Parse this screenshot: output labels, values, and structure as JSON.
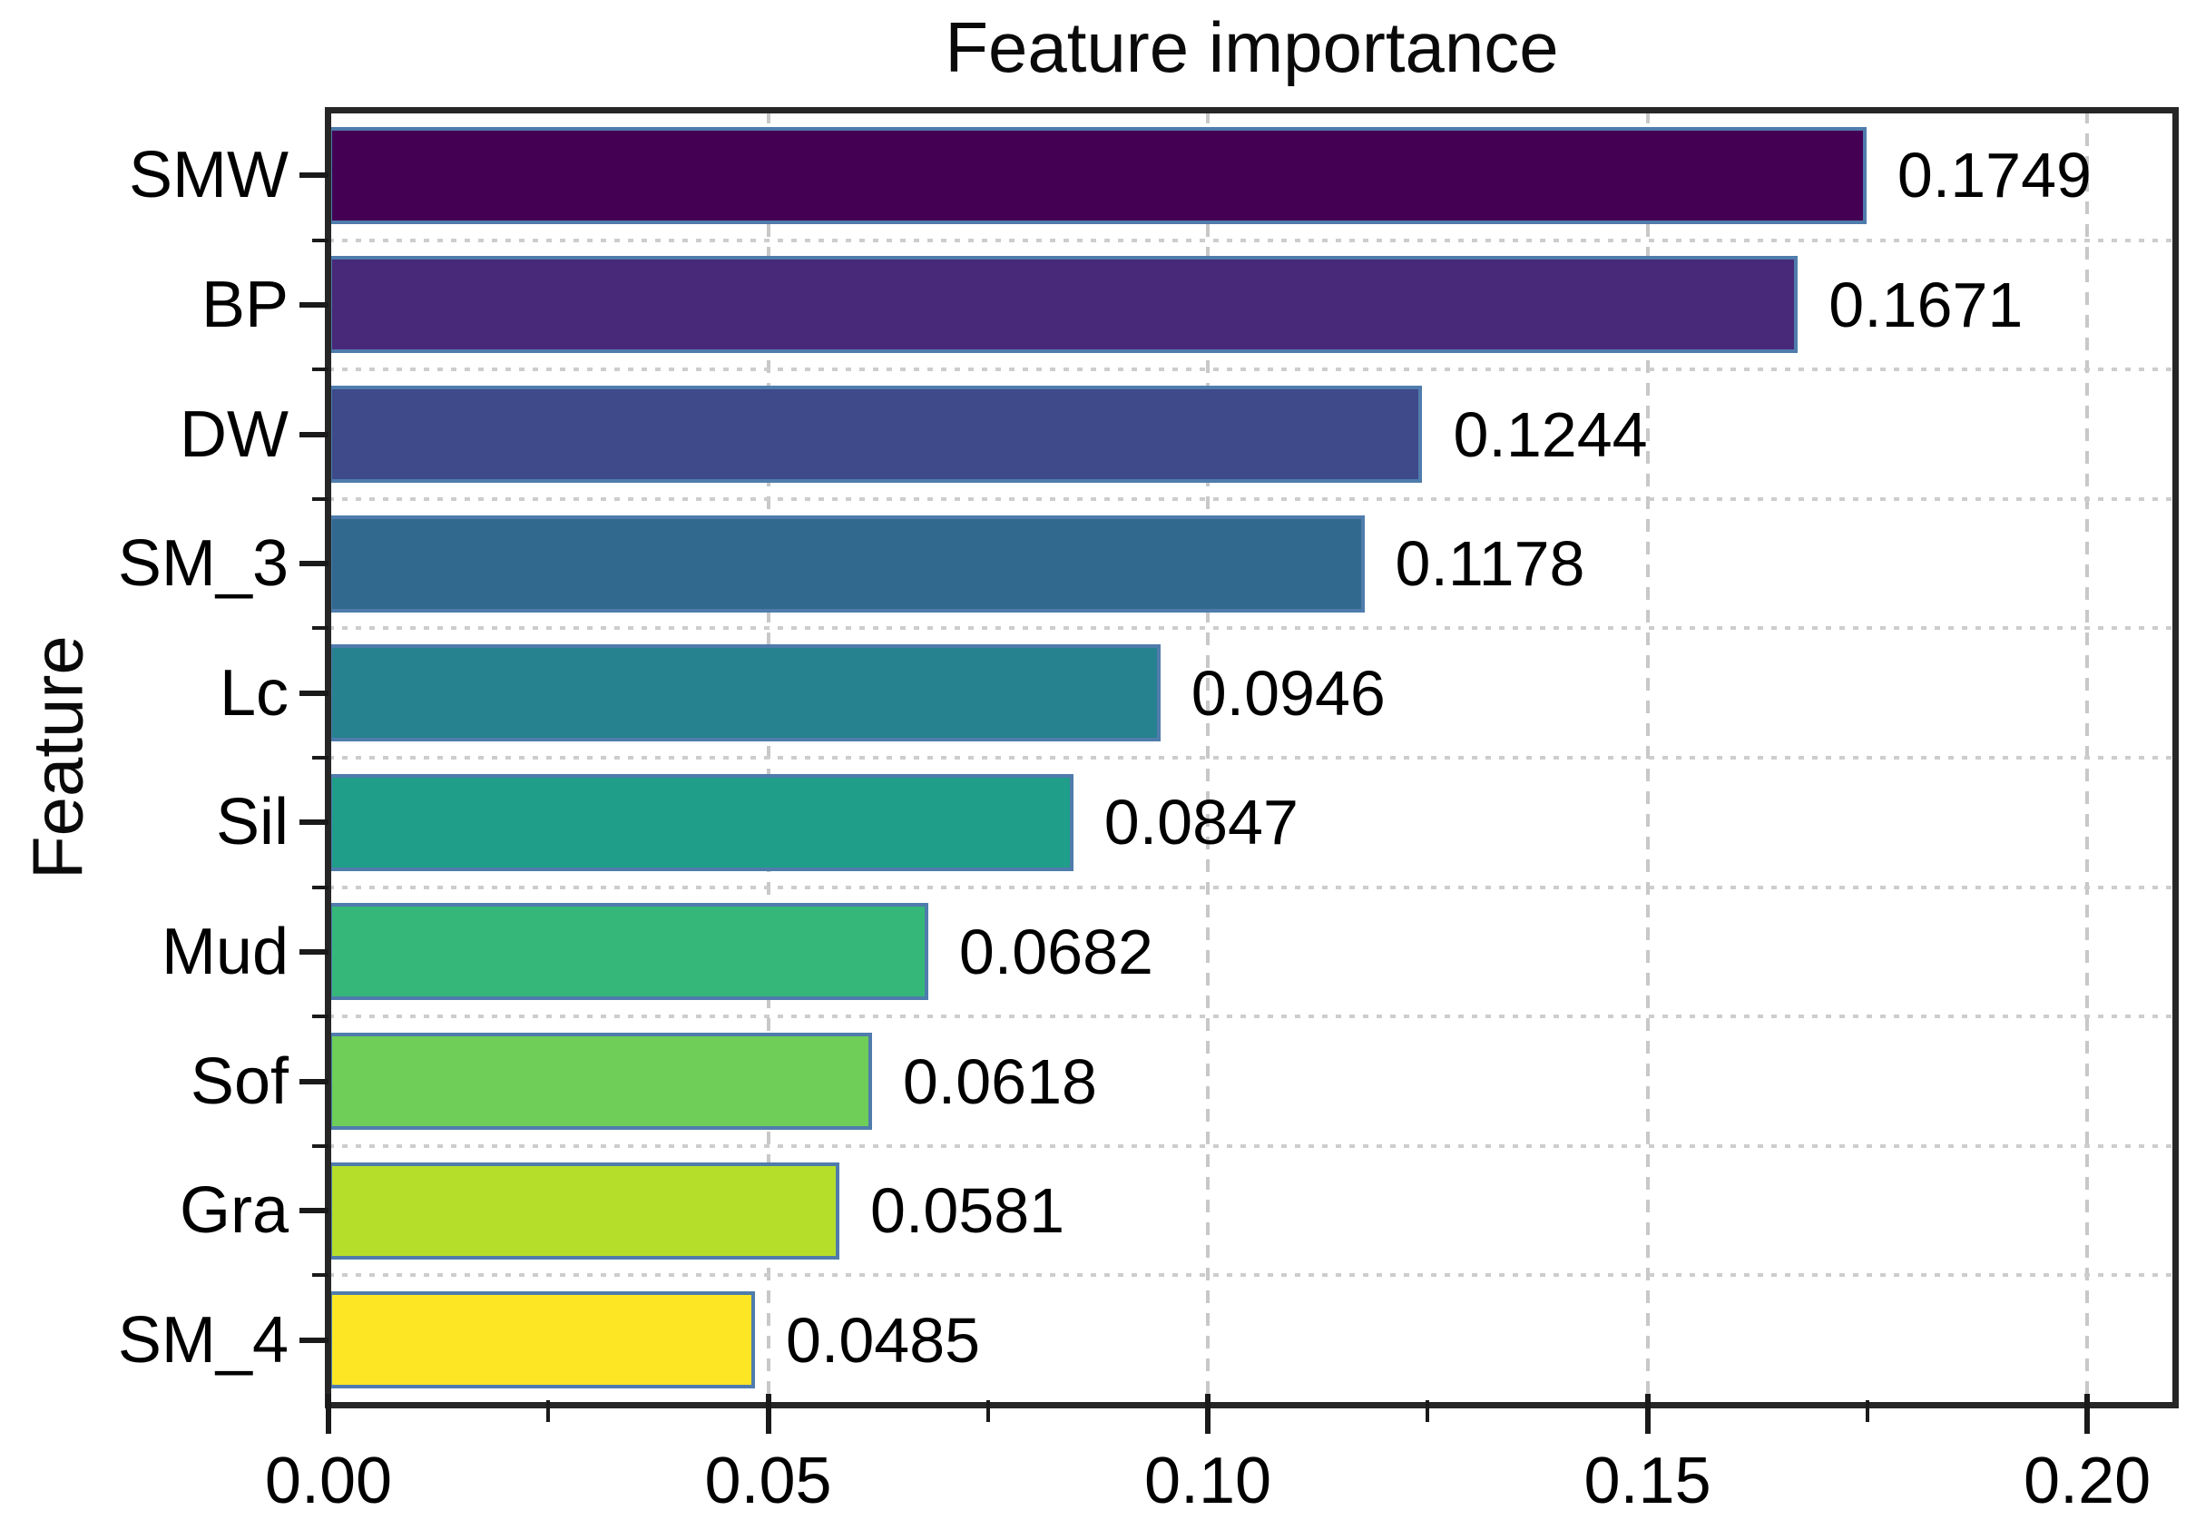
{
  "chart_data": {
    "type": "bar",
    "orientation": "horizontal",
    "title": "Feature importance",
    "xlabel": "",
    "ylabel": "Feature",
    "categories": [
      "SMW",
      "BP",
      "DW",
      "SM_3",
      "Lc",
      "Sil",
      "Mud",
      "Sof",
      "Gra",
      "SM_4"
    ],
    "values": [
      0.1749,
      0.1671,
      0.1244,
      0.1178,
      0.0946,
      0.0847,
      0.0682,
      0.0618,
      0.0581,
      0.0485
    ],
    "value_labels": [
      "0.1749",
      "0.1671",
      "0.1244",
      "0.1178",
      "0.0946",
      "0.0847",
      "0.0682",
      "0.0618",
      "0.0581",
      "0.0485"
    ],
    "x_tick_labels": [
      "0.00",
      "0.05",
      "0.10",
      "0.15",
      "0.20"
    ],
    "x_tick_values": [
      0.0,
      0.05,
      0.1,
      0.15,
      0.2
    ],
    "x_minor_tick_values": [
      0.025,
      0.075,
      0.125,
      0.175
    ],
    "xlim": [
      0,
      0.21
    ],
    "grid": {
      "vertical": "dashed-at-major-ticks",
      "horizontal": "dotted-between-bars"
    },
    "legend_position": "none",
    "colors": {
      "bar_fills": [
        "#440154",
        "#482878",
        "#3e4a89",
        "#31688e",
        "#26828e",
        "#1f9e89",
        "#35b779",
        "#6ece58",
        "#b5de2b",
        "#fde725"
      ],
      "bar_edge": "#4f7cac",
      "spine": "#262626",
      "grid_line": "#c8c8c8",
      "text": "#000000"
    }
  }
}
